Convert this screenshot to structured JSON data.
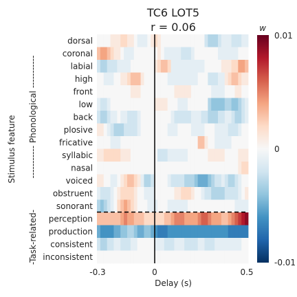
{
  "chart_data": {
    "type": "heatmap",
    "title": "TC6 LOT5",
    "subtitle": "r = 0.06",
    "xlabel": "Delay (s)",
    "ylabel": "Stimulus feature",
    "x_ticks": [
      "-0.3",
      "0",
      "0.5"
    ],
    "xlim": [
      -0.3,
      0.5
    ],
    "y_categories": [
      "dorsal",
      "coronal",
      "labial",
      "high",
      "front",
      "low",
      "back",
      "plosive",
      "fricative",
      "syllabic",
      "nasal",
      "voiced",
      "obstruent",
      "sonorant",
      "perception",
      "production",
      "consistent",
      "inconsistent"
    ],
    "group_labels": [
      {
        "label": "----------- Phonological -----------",
        "rows": [
          0,
          13
        ]
      },
      {
        "label": "-Task-related-",
        "rows": [
          14,
          17
        ]
      }
    ],
    "colorbar": {
      "label": "w",
      "ticks": [
        "0.01",
        "0",
        "-0.01"
      ],
      "range": [
        -0.01,
        0.01
      ],
      "colormap": "RdBu_r"
    },
    "zero_delay_line": true,
    "separator_between_rows": [
      13,
      14
    ],
    "n_delay_bins": 45,
    "values": [
      [
        0,
        0,
        0,
        0,
        1,
        1,
        1,
        2,
        2,
        1,
        1,
        0,
        -1,
        -1,
        -1,
        0,
        1,
        2,
        1,
        0,
        0,
        0,
        0,
        0,
        0,
        0,
        0,
        0,
        0,
        0,
        0,
        0,
        -2,
        -3,
        -3,
        -3,
        -2,
        -1,
        -1,
        -1,
        -2,
        -2,
        -2,
        -1,
        -1
      ],
      [
        3,
        4,
        4,
        3,
        2,
        1,
        1,
        0,
        -1,
        -1,
        -1,
        0,
        0,
        0,
        0,
        0,
        0,
        0,
        1,
        0,
        -1,
        -1,
        -1,
        -1,
        -1,
        -2,
        -2,
        -2,
        -1,
        0,
        0,
        0,
        0,
        0,
        0,
        0,
        -1,
        -1,
        -1,
        -1,
        -1,
        -1,
        0,
        0,
        0
      ],
      [
        -2,
        -3,
        -3,
        -2,
        -2,
        -2,
        -1,
        -1,
        -1,
        -1,
        0,
        0,
        0,
        0,
        0,
        0,
        0,
        1,
        2,
        3,
        3,
        2,
        -1,
        -1,
        -1,
        -1,
        -1,
        -1,
        -1,
        -1,
        -1,
        -1,
        0,
        0,
        0,
        0,
        0,
        1,
        1,
        1,
        2,
        2,
        4,
        4,
        3
      ],
      [
        0,
        0,
        -1,
        -1,
        -1,
        0,
        0,
        1,
        1,
        2,
        3,
        3,
        3,
        1,
        0,
        0,
        0,
        0,
        0,
        0,
        0,
        -1,
        -1,
        -1,
        -1,
        -1,
        -1,
        -1,
        -1,
        -1,
        0,
        0,
        0,
        -2,
        -2,
        -2,
        -1,
        -1,
        1,
        2,
        3,
        3,
        2,
        1,
        1
      ],
      [
        0,
        0,
        0,
        0,
        0,
        0,
        0,
        0,
        0,
        0,
        1,
        1,
        1,
        0,
        0,
        0,
        0,
        0,
        0,
        0,
        0,
        0,
        0,
        1,
        1,
        1,
        1,
        1,
        0,
        0,
        0,
        0,
        0,
        0,
        -1,
        -1,
        -1,
        -1,
        0,
        0,
        0,
        1,
        1,
        0,
        0
      ],
      [
        -1,
        -2,
        -2,
        -1,
        0,
        0,
        0,
        0,
        0,
        0,
        0,
        0,
        0,
        0,
        0,
        0,
        0,
        1,
        1,
        1,
        1,
        0,
        0,
        0,
        -1,
        -1,
        -1,
        0,
        0,
        0,
        0,
        0,
        0,
        -3,
        -4,
        -4,
        -4,
        -4,
        -3,
        -3,
        -4,
        -4,
        -3,
        -2,
        -1
      ],
      [
        -2,
        -3,
        -3,
        -2,
        -1,
        -1,
        0,
        -1,
        -1,
        -2,
        -2,
        -2,
        -1,
        0,
        0,
        0,
        0,
        0,
        0,
        0,
        0,
        0,
        -1,
        -2,
        -2,
        -2,
        -2,
        -2,
        -1,
        -1,
        -1,
        -2,
        -2,
        -3,
        -3,
        -3,
        -2,
        -2,
        -1,
        -1,
        -2,
        -3,
        -3,
        -2,
        -1
      ],
      [
        1,
        1,
        0,
        -1,
        -2,
        -3,
        -3,
        -3,
        -2,
        -2,
        -2,
        -2,
        -1,
        0,
        0,
        0,
        0,
        0,
        0,
        0,
        0,
        -1,
        -1,
        -1,
        0,
        0,
        0,
        0,
        -1,
        -1,
        -1,
        -1,
        0,
        0,
        0,
        -1,
        -1,
        -1,
        -1,
        -2,
        -2,
        -2,
        -1,
        0,
        0
      ],
      [
        0,
        0,
        0,
        0,
        -1,
        -1,
        -1,
        0,
        0,
        0,
        0,
        0,
        0,
        0,
        0,
        0,
        0,
        0,
        0,
        0,
        0,
        0,
        0,
        0,
        0,
        0,
        0,
        0,
        0,
        0,
        3,
        3,
        1,
        0,
        0,
        -1,
        -1,
        -1,
        -1,
        -1,
        0,
        0,
        0,
        0,
        0
      ],
      [
        1,
        1,
        2,
        2,
        2,
        2,
        2,
        1,
        1,
        1,
        0,
        0,
        0,
        0,
        0,
        0,
        0,
        0,
        -2,
        -2,
        -2,
        -1,
        -1,
        -1,
        -1,
        -1,
        -1,
        0,
        0,
        0,
        0,
        0,
        0,
        1,
        1,
        1,
        1,
        1,
        0,
        0,
        0,
        0,
        1,
        1,
        1
      ],
      [
        0,
        0,
        0,
        0,
        0,
        0,
        0,
        0,
        0,
        0,
        0,
        0,
        0,
        0,
        0,
        0,
        0,
        0,
        0,
        0,
        0,
        0,
        0,
        0,
        0,
        0,
        0,
        0,
        0,
        0,
        0,
        0,
        0,
        0,
        0,
        0,
        0,
        0,
        0,
        0,
        0,
        0,
        1,
        2,
        2
      ],
      [
        1,
        1,
        0,
        0,
        -1,
        -1,
        0,
        1,
        2,
        3,
        3,
        2,
        1,
        -1,
        -3,
        -3,
        -2,
        0,
        0,
        0,
        0,
        -1,
        -2,
        -2,
        -2,
        -2,
        -3,
        -3,
        -3,
        -4,
        -5,
        -5,
        -5,
        -4,
        -3,
        -2,
        -2,
        -1,
        -2,
        -3,
        -3,
        -2,
        -1,
        0,
        0
      ],
      [
        -1,
        -2,
        -2,
        -2,
        -1,
        0,
        1,
        2,
        2,
        2,
        2,
        1,
        0,
        0,
        -1,
        -1,
        -1,
        0,
        0,
        0,
        0,
        0,
        0,
        1,
        1,
        2,
        2,
        2,
        1,
        0,
        0,
        -1,
        -2,
        -2,
        -3,
        -3,
        -3,
        -3,
        -2,
        -2,
        -2,
        -2,
        -1,
        0,
        1
      ],
      [
        -3,
        -4,
        -3,
        -2,
        -1,
        0,
        2,
        3,
        4,
        3,
        2,
        1,
        0,
        0,
        0,
        -1,
        -1,
        -1,
        0,
        0,
        0,
        -1,
        -1,
        -1,
        -1,
        -1,
        -1,
        0,
        0,
        0,
        0,
        0,
        0,
        0,
        0,
        0,
        0,
        0,
        0,
        0,
        0,
        -1,
        -1,
        -1,
        -1
      ],
      [
        3,
        3,
        3,
        3,
        3,
        3,
        3,
        4,
        5,
        4,
        4,
        3,
        3,
        3,
        2,
        2,
        2,
        2,
        2,
        2,
        3,
        3,
        4,
        5,
        5,
        5,
        4,
        4,
        4,
        4,
        5,
        6,
        6,
        5,
        4,
        4,
        4,
        3,
        3,
        4,
        5,
        6,
        7,
        8,
        9
      ],
      [
        -5,
        -6,
        -6,
        -6,
        -6,
        -5,
        -5,
        -4,
        -4,
        -3,
        -3,
        -4,
        -5,
        -5,
        -4,
        -4,
        -5,
        -6,
        -7,
        -7,
        -7,
        -6,
        -6,
        -6,
        -6,
        -6,
        -6,
        -6,
        -6,
        -6,
        -6,
        -6,
        -6,
        -6,
        -6,
        -6,
        -6,
        -6,
        -6,
        -7,
        -7,
        -7,
        -7,
        -7,
        -7
      ],
      [
        -2,
        -3,
        -3,
        -2,
        -2,
        -1,
        -1,
        -2,
        -2,
        -2,
        -1,
        -1,
        0,
        0,
        0,
        0,
        0,
        -1,
        -1,
        -1,
        -2,
        -2,
        -2,
        -1,
        -1,
        -1,
        -2,
        -2,
        -2,
        -2,
        -1,
        -1,
        -2,
        -2,
        -2,
        -1,
        -1,
        -1,
        -1,
        -1,
        -1,
        -1,
        -1,
        0,
        0
      ],
      [
        0,
        0,
        0,
        0,
        0,
        0,
        0,
        0,
        0,
        0,
        0,
        0,
        0,
        0,
        0,
        0,
        0,
        0,
        0,
        0,
        0,
        0,
        0,
        0,
        0,
        0,
        0,
        0,
        0,
        0,
        0,
        0,
        0,
        0,
        0,
        0,
        0,
        0,
        0,
        0,
        0,
        0,
        0,
        0,
        0
      ]
    ]
  }
}
